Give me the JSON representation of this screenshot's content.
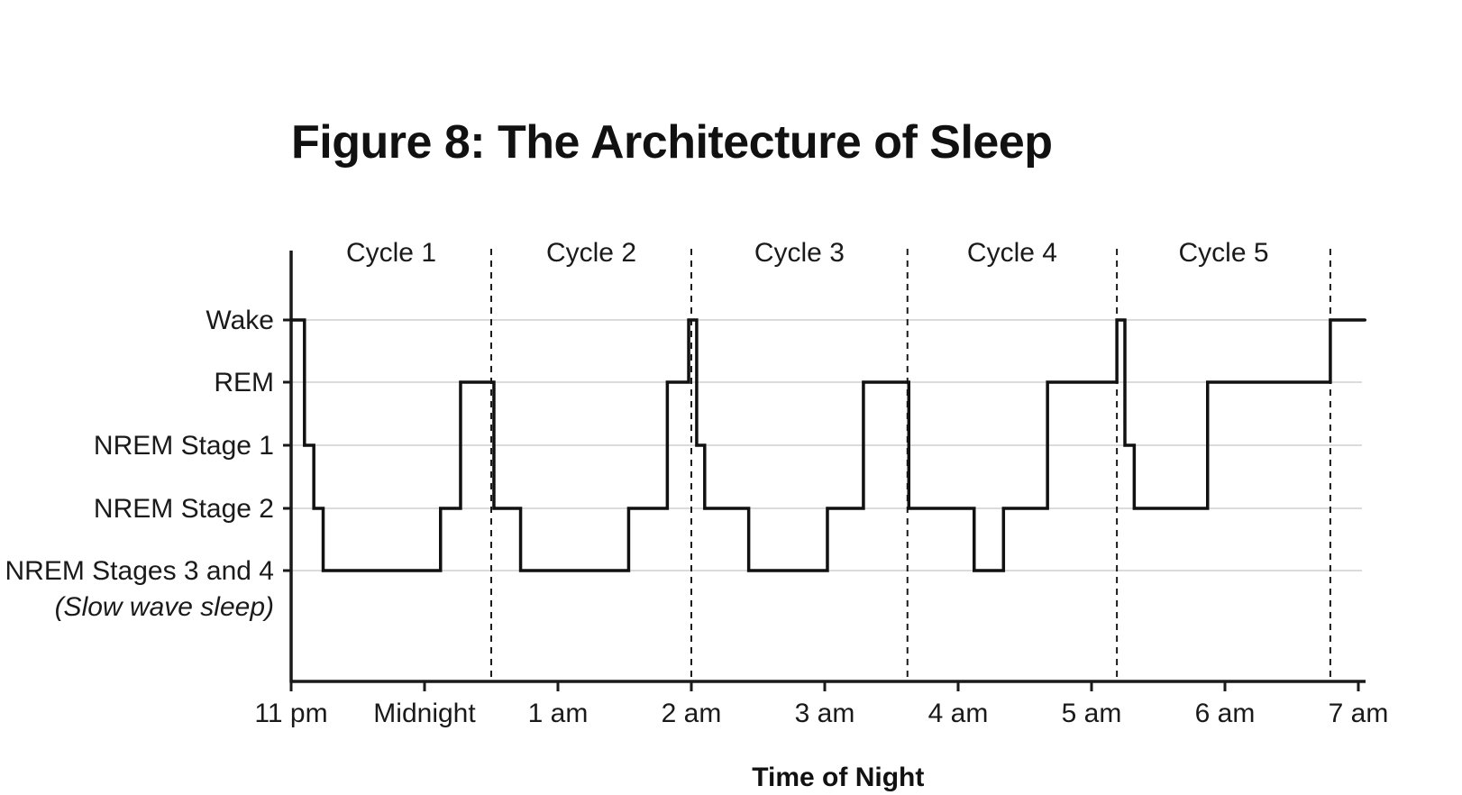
{
  "chart_data": {
    "type": "line",
    "title": "Figure 8: The Architecture of Sleep",
    "xlabel": "Time of Night",
    "ylabel": "",
    "x_unit": "hours after 11 pm",
    "x_tick_labels": [
      "11 pm",
      "Midnight",
      "1 am",
      "2 am",
      "3 am",
      "4 am",
      "5 am",
      "6 am",
      "7 am"
    ],
    "xlim": [
      0,
      8.1
    ],
    "y_categories": [
      {
        "label": "Wake",
        "sublabel": ""
      },
      {
        "label": "REM",
        "sublabel": ""
      },
      {
        "label": "NREM Stage 1",
        "sublabel": ""
      },
      {
        "label": "NREM Stage 2",
        "sublabel": ""
      },
      {
        "label": "NREM Stages 3 and 4",
        "sublabel": "(Slow wave sleep)"
      }
    ],
    "grid": true,
    "cycles": [
      {
        "label": "Cycle 1",
        "end": 1.5
      },
      {
        "label": "Cycle 2",
        "end": 3.0
      },
      {
        "label": "Cycle 3",
        "end": 4.62
      },
      {
        "label": "Cycle 4",
        "end": 6.19
      },
      {
        "label": "Cycle 5",
        "end": 7.79
      }
    ],
    "hypnogram": [
      {
        "x": 0.0,
        "stage": "Wake"
      },
      {
        "x": 0.1,
        "stage": "NREM Stage 1"
      },
      {
        "x": 0.17,
        "stage": "NREM Stage 2"
      },
      {
        "x": 0.24,
        "stage": "NREM Stages 3 and 4"
      },
      {
        "x": 1.12,
        "stage": "NREM Stage 2"
      },
      {
        "x": 1.27,
        "stage": "REM"
      },
      {
        "x": 1.52,
        "stage": "NREM Stage 2"
      },
      {
        "x": 1.72,
        "stage": "NREM Stages 3 and 4"
      },
      {
        "x": 2.53,
        "stage": "NREM Stage 2"
      },
      {
        "x": 2.82,
        "stage": "REM"
      },
      {
        "x": 2.98,
        "stage": "Wake"
      },
      {
        "x": 3.04,
        "stage": "NREM Stage 1"
      },
      {
        "x": 3.1,
        "stage": "NREM Stage 2"
      },
      {
        "x": 3.43,
        "stage": "NREM Stages 3 and 4"
      },
      {
        "x": 4.02,
        "stage": "NREM Stage 2"
      },
      {
        "x": 4.29,
        "stage": "REM"
      },
      {
        "x": 4.63,
        "stage": "NREM Stage 2"
      },
      {
        "x": 5.12,
        "stage": "NREM Stages 3 and 4"
      },
      {
        "x": 5.34,
        "stage": "NREM Stage 2"
      },
      {
        "x": 5.67,
        "stage": "REM"
      },
      {
        "x": 6.19,
        "stage": "Wake"
      },
      {
        "x": 6.25,
        "stage": "NREM Stage 1"
      },
      {
        "x": 6.32,
        "stage": "NREM Stage 2"
      },
      {
        "x": 6.87,
        "stage": "REM"
      },
      {
        "x": 7.79,
        "stage": "Wake"
      },
      {
        "x": 8.05,
        "stage": "Wake"
      }
    ]
  }
}
